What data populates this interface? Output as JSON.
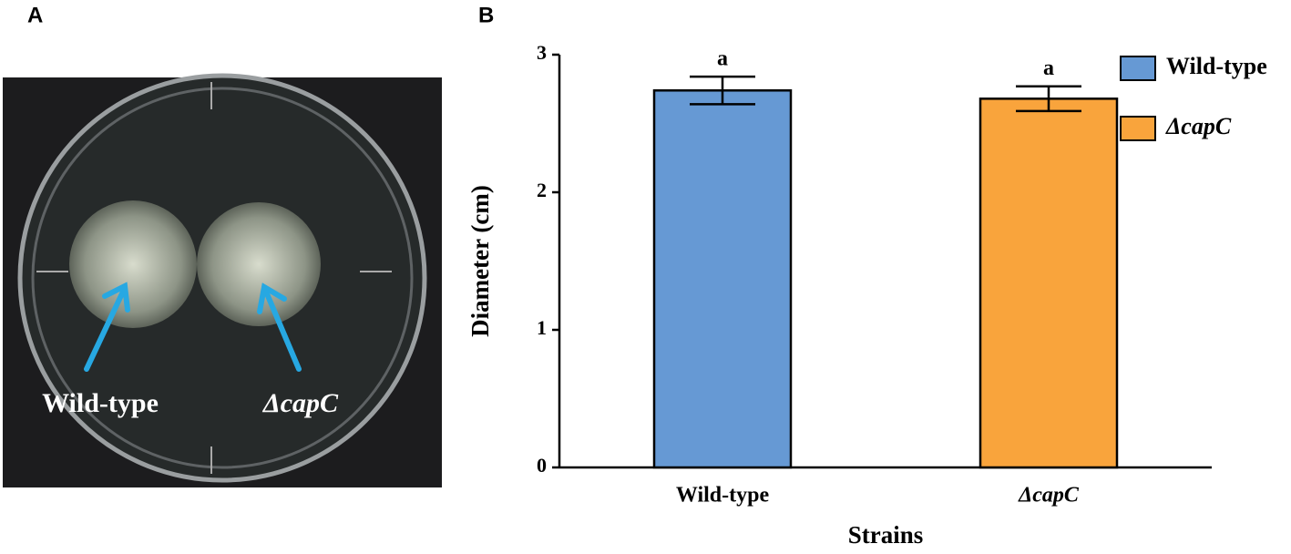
{
  "panel_labels": [
    "A",
    "B"
  ],
  "photo": {
    "labels": [
      "Wild-type",
      "ΔcapC"
    ]
  },
  "chart_data": {
    "type": "bar",
    "categories": [
      "Wild-type",
      "ΔcapC"
    ],
    "values": [
      2.74,
      2.68
    ],
    "errors": [
      0.1,
      0.09
    ],
    "annotations": [
      "a",
      "a"
    ],
    "colors": [
      "#6699d4",
      "#f9a43c"
    ],
    "ylabel": "Diameter (cm)",
    "xlabel": "Strains",
    "ylim": [
      0,
      3
    ],
    "yticks": [
      0,
      1,
      2,
      3
    ],
    "legend": "upper right"
  }
}
